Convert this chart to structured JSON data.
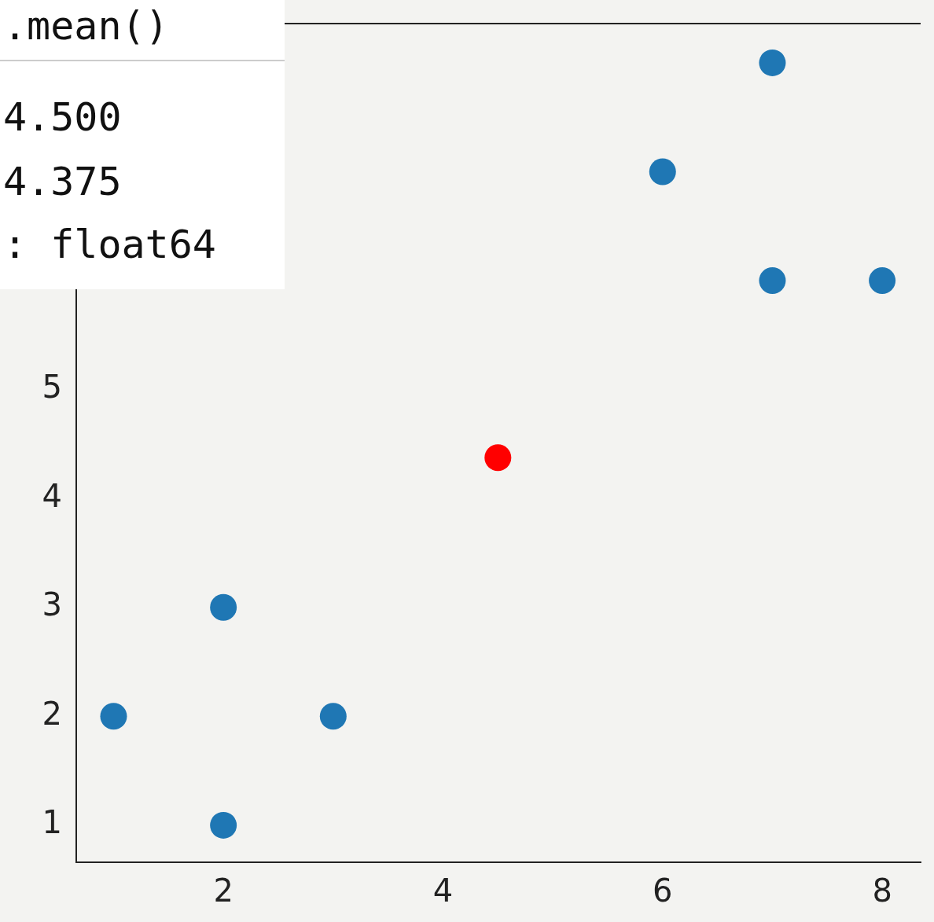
{
  "chart_data": {
    "type": "scatter",
    "series": [
      {
        "color": "#1f77b4",
        "x": [
          7,
          6,
          7,
          8,
          2,
          1,
          3,
          2
        ],
        "values": [
          8,
          7,
          6,
          6,
          3,
          2,
          2,
          1
        ]
      },
      {
        "color": "#ff0000",
        "x": [
          4.5
        ],
        "values": [
          4.375
        ]
      }
    ],
    "xlim": [
      0.66,
      8.35
    ],
    "ylim": [
      0.66,
      8.36
    ],
    "xticks": [
      2,
      4,
      6,
      8
    ],
    "yticks": [
      1,
      2,
      3,
      4,
      5
    ],
    "grid": false,
    "legend": false,
    "marker": "circle",
    "annotations": [
      ".mean()",
      "4.500",
      "4.375",
      ": float64"
    ]
  }
}
